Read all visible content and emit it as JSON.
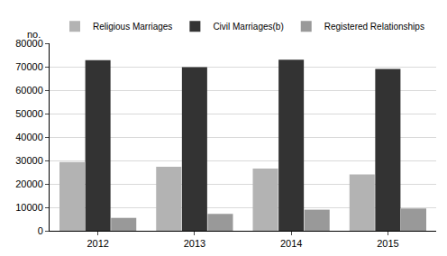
{
  "chart_data": {
    "type": "bar",
    "y_label": "no.",
    "categories": [
      "2012",
      "2013",
      "2014",
      "2015"
    ],
    "series": [
      {
        "name": "Religious Marriages",
        "color": "#b3b3b3",
        "values": [
          29300,
          27300,
          26500,
          24000
        ]
      },
      {
        "name": "Civil Marriages(b)",
        "color": "#333333",
        "values": [
          72800,
          69800,
          73000,
          69000
        ]
      },
      {
        "name": "Registered Relationships",
        "color": "#999999",
        "values": [
          5500,
          7200,
          9000,
          9500
        ]
      }
    ],
    "ylim": [
      0,
      80000
    ],
    "yticks": [
      0,
      10000,
      20000,
      30000,
      40000,
      50000,
      60000,
      70000,
      80000
    ],
    "grid": true,
    "legend": "top"
  }
}
